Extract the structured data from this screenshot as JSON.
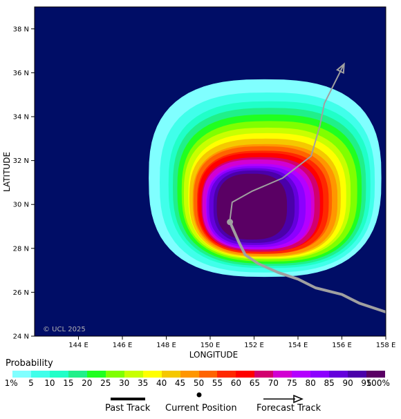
{
  "map": {
    "x_axis_title": "LONGITUDE",
    "y_axis_title": "LATITUDE",
    "x_ticks": [
      {
        "lon": 144,
        "label": "144 E"
      },
      {
        "lon": 146,
        "label": "146 E"
      },
      {
        "lon": 148,
        "label": "148 E"
      },
      {
        "lon": 150,
        "label": "150 E"
      },
      {
        "lon": 152,
        "label": "152 E"
      },
      {
        "lon": 154,
        "label": "154 E"
      },
      {
        "lon": 156,
        "label": "156 E"
      },
      {
        "lon": 158,
        "label": "158 E"
      }
    ],
    "y_ticks": [
      {
        "lat": 24,
        "label": "24 N"
      },
      {
        "lat": 26,
        "label": "26 N"
      },
      {
        "lat": 28,
        "label": "28 N"
      },
      {
        "lat": 30,
        "label": "30 N"
      },
      {
        "lat": 32,
        "label": "32 N"
      },
      {
        "lat": 34,
        "label": "34 N"
      },
      {
        "lat": 36,
        "label": "36 N"
      },
      {
        "lat": 38,
        "label": "38 N"
      }
    ],
    "lon_range": [
      142.0,
      158.0
    ],
    "lat_range": [
      24.0,
      39.0
    ],
    "copyright": "© UCL 2025",
    "background_color": "#000d66",
    "track_color": "#a0a0a0",
    "current_position": {
      "lon": 150.9,
      "lat": 29.2
    },
    "past_track": [
      [
        158.0,
        25.1
      ],
      [
        156.8,
        25.5
      ],
      [
        156.0,
        25.9
      ],
      [
        154.8,
        26.2
      ],
      [
        154.0,
        26.6
      ],
      [
        153.1,
        26.9
      ],
      [
        152.2,
        27.3
      ],
      [
        151.6,
        27.7
      ],
      [
        151.3,
        28.3
      ],
      [
        150.9,
        29.2
      ]
    ],
    "forecast_track": [
      [
        150.9,
        29.2
      ],
      [
        150.9,
        29.3
      ],
      [
        151.0,
        30.1
      ],
      [
        151.9,
        30.6
      ],
      [
        153.3,
        31.2
      ],
      [
        154.6,
        32.2
      ],
      [
        155.0,
        33.6
      ],
      [
        155.2,
        34.6
      ],
      [
        155.7,
        35.6
      ],
      [
        156.1,
        36.4
      ]
    ],
    "probability_levels": [
      {
        "p": 1,
        "dx": 5.3,
        "dy": 4.5,
        "cx": 152.5,
        "cy": 31.2
      },
      {
        "p": 5,
        "dx": 4.9,
        "dy": 4.1,
        "cx": 152.6,
        "cy": 31.0
      },
      {
        "p": 10,
        "dx": 4.6,
        "dy": 3.8,
        "cx": 152.7,
        "cy": 30.9
      },
      {
        "p": 15,
        "dx": 4.4,
        "dy": 3.6,
        "cx": 152.7,
        "cy": 30.8
      },
      {
        "p": 20,
        "dx": 4.2,
        "dy": 3.4,
        "cx": 152.7,
        "cy": 30.7
      },
      {
        "p": 25,
        "dx": 4.0,
        "dy": 3.2,
        "cx": 152.7,
        "cy": 30.6
      },
      {
        "p": 30,
        "dx": 3.8,
        "dy": 3.0,
        "cx": 152.6,
        "cy": 30.5
      },
      {
        "p": 35,
        "dx": 3.6,
        "dy": 2.85,
        "cx": 152.6,
        "cy": 30.4
      },
      {
        "p": 40,
        "dx": 3.45,
        "dy": 2.7,
        "cx": 152.5,
        "cy": 30.3
      },
      {
        "p": 45,
        "dx": 3.3,
        "dy": 2.55,
        "cx": 152.5,
        "cy": 30.2
      },
      {
        "p": 50,
        "dx": 3.15,
        "dy": 2.45,
        "cx": 152.4,
        "cy": 30.2
      },
      {
        "p": 55,
        "dx": 3.0,
        "dy": 2.35,
        "cx": 152.4,
        "cy": 30.1
      },
      {
        "p": 60,
        "dx": 2.85,
        "dy": 2.25,
        "cx": 152.3,
        "cy": 30.1
      },
      {
        "p": 65,
        "dx": 2.7,
        "dy": 2.15,
        "cx": 152.3,
        "cy": 30.0
      },
      {
        "p": 70,
        "dx": 2.55,
        "dy": 2.05,
        "cx": 152.2,
        "cy": 30.0
      },
      {
        "p": 75,
        "dx": 2.4,
        "dy": 1.95,
        "cx": 152.2,
        "cy": 29.9
      },
      {
        "p": 80,
        "dx": 2.25,
        "dy": 1.85,
        "cx": 152.1,
        "cy": 29.9
      },
      {
        "p": 85,
        "dx": 2.05,
        "dy": 1.75,
        "cx": 152.0,
        "cy": 29.9
      },
      {
        "p": 90,
        "dx": 1.85,
        "dy": 1.65,
        "cx": 152.0,
        "cy": 29.9
      },
      {
        "p": 95,
        "dx": 1.6,
        "dy": 1.5,
        "cx": 151.9,
        "cy": 29.9
      }
    ]
  },
  "legend": {
    "title": "Probability",
    "colors": [
      "#80ffff",
      "#40ffea",
      "#20ffc8",
      "#20f08a",
      "#20ff20",
      "#80ff00",
      "#c8ff00",
      "#ffff00",
      "#f5c800",
      "#ff9600",
      "#ff6400",
      "#ff2800",
      "#ff0000",
      "#d2006e",
      "#d200d2",
      "#b400ff",
      "#8c00ff",
      "#6400dc",
      "#4b00aa",
      "#5a0064"
    ],
    "labels": [
      "1%",
      "5",
      "10",
      "15",
      "20",
      "25",
      "30",
      "35",
      "40",
      "45",
      "50",
      "55",
      "60",
      "65",
      "70",
      "75",
      "80",
      "85",
      "90",
      "95",
      "100%"
    ],
    "past_track_label": "Past Track",
    "current_position_label": "Current Position",
    "forecast_track_label": "Forecast Track"
  }
}
